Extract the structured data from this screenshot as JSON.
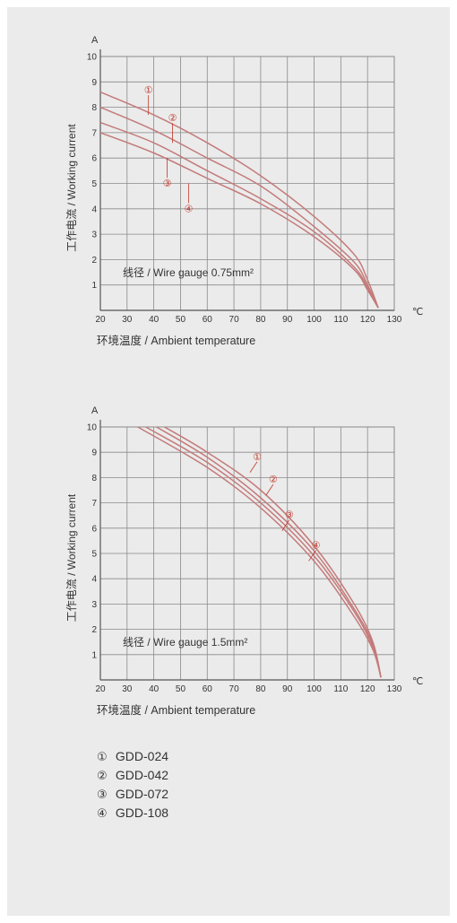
{
  "chart_data": [
    {
      "type": "line",
      "y_unit_label": "A",
      "x_unit_label": "℃",
      "ylabel": "工作电流 / Working current",
      "xlabel": "环境温度 / Ambient temperature",
      "annotation": "线径 / Wire gauge 0.75mm²",
      "x_ticks": [
        "20",
        "30",
        "40",
        "50",
        "60",
        "70",
        "80",
        "90",
        "100",
        "110",
        "120",
        "130"
      ],
      "y_ticks": [
        "1",
        "2",
        "3",
        "4",
        "5",
        "6",
        "7",
        "8",
        "9",
        "10"
      ],
      "xlim": [
        20,
        130
      ],
      "ylim": [
        0,
        10
      ],
      "grid": true,
      "series": [
        {
          "marker": "①",
          "x": [
            20,
            40,
            60,
            80,
            100,
            115,
            120,
            124
          ],
          "y": [
            8.6,
            7.7,
            6.6,
            5.3,
            3.7,
            2.2,
            1.2,
            0.1
          ]
        },
        {
          "marker": "②",
          "x": [
            20,
            40,
            60,
            80,
            100,
            115,
            120,
            124
          ],
          "y": [
            8.0,
            7.1,
            6.0,
            4.9,
            3.3,
            1.9,
            1.0,
            0.1
          ]
        },
        {
          "marker": "③",
          "x": [
            20,
            40,
            60,
            80,
            100,
            115,
            120,
            124
          ],
          "y": [
            7.4,
            6.6,
            5.5,
            4.4,
            3.1,
            1.7,
            0.9,
            0.1
          ]
        },
        {
          "marker": "④",
          "x": [
            20,
            40,
            60,
            80,
            100,
            115,
            120,
            124
          ],
          "y": [
            7.0,
            6.2,
            5.2,
            4.2,
            2.9,
            1.6,
            0.8,
            0.1
          ]
        }
      ],
      "marker_anchors": [
        {
          "label": "①",
          "x": 38,
          "y": 7.7
        },
        {
          "label": "②",
          "x": 47,
          "y": 6.6
        },
        {
          "label": "③",
          "x": 45,
          "y": 6.0
        },
        {
          "label": "④",
          "x": 53,
          "y": 5.0
        }
      ]
    },
    {
      "type": "line",
      "y_unit_label": "A",
      "x_unit_label": "℃",
      "ylabel": "工作电流 / Working current",
      "xlabel": "环境温度 / Ambient temperature",
      "annotation": "线径 / Wire gauge 1.5mm²",
      "x_ticks": [
        "20",
        "30",
        "40",
        "50",
        "60",
        "70",
        "80",
        "90",
        "100",
        "110",
        "120",
        "130"
      ],
      "y_ticks": [
        "1",
        "2",
        "3",
        "4",
        "5",
        "6",
        "7",
        "8",
        "9",
        "10"
      ],
      "xlim": [
        20,
        130
      ],
      "ylim": [
        0,
        10
      ],
      "grid": true,
      "series": [
        {
          "marker": "①",
          "x": [
            44,
            60,
            80,
            100,
            115,
            122,
            125
          ],
          "y": [
            10,
            9.0,
            7.5,
            5.3,
            3.0,
            1.5,
            0.1
          ]
        },
        {
          "marker": "②",
          "x": [
            41,
            60,
            80,
            100,
            115,
            122,
            125
          ],
          "y": [
            10,
            8.8,
            7.2,
            5.1,
            2.8,
            1.4,
            0.1
          ]
        },
        {
          "marker": "③",
          "x": [
            37,
            60,
            80,
            100,
            115,
            122,
            125
          ],
          "y": [
            10,
            8.6,
            7.0,
            4.9,
            2.7,
            1.3,
            0.1
          ]
        },
        {
          "marker": "④",
          "x": [
            34,
            60,
            80,
            100,
            115,
            122,
            125
          ],
          "y": [
            10,
            8.4,
            6.8,
            4.7,
            2.5,
            1.2,
            0.1
          ]
        }
      ],
      "marker_anchors": [
        {
          "label": "①",
          "x": 76,
          "y": 8.2
        },
        {
          "label": "②",
          "x": 82,
          "y": 7.3
        },
        {
          "label": "③",
          "x": 88,
          "y": 5.9
        },
        {
          "label": "④",
          "x": 98,
          "y": 4.7
        }
      ]
    }
  ],
  "legend": [
    {
      "marker": "①",
      "name": "GDD-024"
    },
    {
      "marker": "②",
      "name": "GDD-042"
    },
    {
      "marker": "③",
      "name": "GDD-072"
    },
    {
      "marker": "④",
      "name": "GDD-108"
    }
  ],
  "colors": {
    "panel_background": "#ebebeb",
    "page_background": "#ffffff",
    "grid": "#8a8a8a",
    "axis": "#555555",
    "curves": "#c47a7a",
    "marker": "#c0392b",
    "text": "#333333"
  }
}
